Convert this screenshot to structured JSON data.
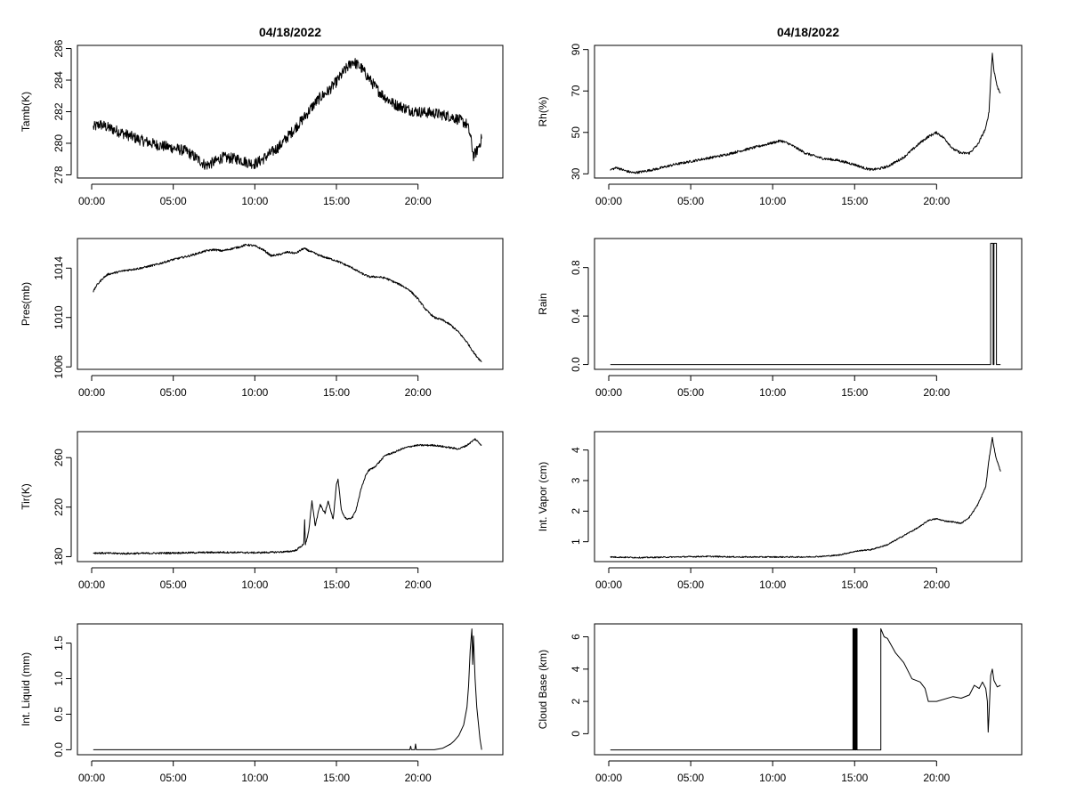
{
  "figure": {
    "date_title": "04/18/2022"
  },
  "chart_data": [
    {
      "id": "tamb",
      "type": "line",
      "title": "04/18/2022",
      "ylabel": "Tamb(K)",
      "xlim": [
        0,
        24
      ],
      "ylim": [
        277.8,
        286.2
      ],
      "x_ticks": [
        0,
        5,
        10,
        15,
        20
      ],
      "x_tick_labels": [
        "00:00",
        "05:00",
        "10:00",
        "15:00",
        "20:00"
      ],
      "y_ticks": [
        278,
        280,
        282,
        284,
        286
      ],
      "y_tick_labels": [
        "278",
        "280",
        "282",
        "284",
        "286"
      ],
      "series": [
        {
          "noise": 0.35,
          "x": [
            0.1,
            0.5,
            1,
            2,
            3,
            4,
            5,
            5.8,
            6.5,
            7,
            7.5,
            8,
            9,
            9.5,
            10,
            10.5,
            11,
            11.5,
            12,
            12.5,
            13,
            13.5,
            14,
            14.5,
            15,
            15.5,
            16,
            16.5,
            17,
            17.5,
            18,
            18.5,
            19,
            19.5,
            20,
            21,
            22,
            22.5,
            23,
            23.2,
            23.4,
            23.6,
            23.9
          ],
          "y": [
            281.0,
            281.2,
            281.0,
            280.6,
            280.2,
            279.9,
            279.7,
            279.5,
            279.0,
            278.6,
            278.8,
            279.1,
            279.0,
            278.8,
            278.7,
            279.0,
            279.4,
            279.8,
            280.4,
            281.0,
            281.6,
            282.3,
            282.9,
            283.3,
            283.9,
            284.6,
            285.2,
            284.8,
            284.1,
            283.4,
            282.9,
            282.5,
            282.3,
            282.1,
            282.0,
            281.9,
            281.7,
            281.5,
            281.2,
            280.5,
            279.2,
            279.5,
            280.3
          ]
        }
      ]
    },
    {
      "id": "rh",
      "type": "line",
      "title": "04/18/2022",
      "ylabel": "Rh(%)",
      "xlim": [
        0,
        24
      ],
      "ylim": [
        28,
        92
      ],
      "x_ticks": [
        0,
        5,
        10,
        15,
        20
      ],
      "x_tick_labels": [
        "00:00",
        "05:00",
        "10:00",
        "15:00",
        "20:00"
      ],
      "y_ticks": [
        30,
        50,
        70,
        90
      ],
      "y_tick_labels": [
        "30",
        "50",
        "70",
        "90"
      ],
      "series": [
        {
          "noise": 0.6,
          "x": [
            0.1,
            0.5,
            1,
            1.5,
            2,
            3,
            4,
            5,
            6,
            7,
            8,
            9,
            10,
            10.5,
            11,
            12,
            13,
            14,
            15,
            15.5,
            16,
            16.5,
            17,
            18,
            19,
            19.5,
            20,
            20.5,
            21,
            21.5,
            22,
            22.5,
            23,
            23.2,
            23.3,
            23.4,
            23.5,
            23.7,
            23.9
          ],
          "y": [
            32,
            33,
            31.5,
            30.5,
            31,
            32.5,
            34.5,
            36,
            37.5,
            39,
            41,
            43,
            45,
            46,
            44.5,
            40,
            37.5,
            36.5,
            34.5,
            33,
            32,
            32.5,
            33.5,
            38,
            45,
            48,
            50,
            47,
            42,
            40,
            40,
            44,
            52,
            60,
            75,
            88,
            80,
            72,
            69
          ]
        }
      ]
    },
    {
      "id": "pres",
      "type": "line",
      "ylabel": "Pres(mb)",
      "xlim": [
        0,
        24
      ],
      "ylim": [
        1005.8,
        1016.4
      ],
      "x_ticks": [
        0,
        5,
        10,
        15,
        20
      ],
      "x_tick_labels": [
        "00:00",
        "05:00",
        "10:00",
        "15:00",
        "20:00"
      ],
      "y_ticks": [
        1006,
        1010,
        1014
      ],
      "y_tick_labels": [
        "1006",
        "1010",
        "1014"
      ],
      "series": [
        {
          "noise": 0.08,
          "x": [
            0.1,
            0.3,
            0.7,
            1,
            2,
            3,
            4,
            5,
            6,
            7,
            7.5,
            8,
            9,
            9.5,
            10,
            10.5,
            11,
            11.5,
            12,
            12.5,
            13,
            13.5,
            14,
            14.5,
            15,
            15.5,
            16,
            16.5,
            17,
            17.5,
            18,
            18.5,
            19,
            19.5,
            20,
            20.5,
            21,
            21.5,
            22,
            22.5,
            23,
            23.5,
            23.9
          ],
          "y": [
            1012.1,
            1012.6,
            1013.2,
            1013.5,
            1013.8,
            1014.0,
            1014.3,
            1014.7,
            1015.0,
            1015.4,
            1015.5,
            1015.4,
            1015.7,
            1015.9,
            1015.8,
            1015.5,
            1015.0,
            1015.1,
            1015.3,
            1015.2,
            1015.6,
            1015.3,
            1015.0,
            1014.8,
            1014.6,
            1014.3,
            1014.0,
            1013.6,
            1013.3,
            1013.3,
            1013.2,
            1012.9,
            1012.6,
            1012.2,
            1011.5,
            1010.6,
            1010.0,
            1009.8,
            1009.4,
            1008.8,
            1008.0,
            1007.0,
            1006.4
          ]
        }
      ]
    },
    {
      "id": "rain",
      "type": "line",
      "ylabel": "Rain",
      "xlim": [
        0,
        24
      ],
      "ylim": [
        -0.04,
        1.04
      ],
      "x_ticks": [
        0,
        5,
        10,
        15,
        20
      ],
      "x_tick_labels": [
        "00:00",
        "05:00",
        "10:00",
        "15:00",
        "20:00"
      ],
      "y_ticks": [
        0,
        0.4,
        0.8
      ],
      "y_tick_labels": [
        "0.0",
        "0.4",
        "0.8"
      ],
      "series": [
        {
          "noise": 0,
          "x": [
            0.1,
            23.3,
            23.3,
            23.45,
            23.45,
            23.5,
            23.5,
            23.65,
            23.65,
            23.9
          ],
          "y": [
            0,
            0,
            1,
            1,
            0,
            0,
            1,
            1,
            0,
            0
          ]
        }
      ]
    },
    {
      "id": "tir",
      "type": "line",
      "ylabel": "Tir(K)",
      "xlim": [
        0,
        24
      ],
      "ylim": [
        176,
        281
      ],
      "x_ticks": [
        0,
        5,
        10,
        15,
        20
      ],
      "x_tick_labels": [
        "00:00",
        "05:00",
        "10:00",
        "15:00",
        "20:00"
      ],
      "y_ticks": [
        180,
        220,
        260
      ],
      "y_tick_labels": [
        "180",
        "220",
        "260"
      ],
      "series": [
        {
          "noise": 0.7,
          "x": [
            0.1,
            2,
            4,
            6,
            8,
            10,
            11,
            12,
            12.5,
            12.8,
            13,
            13.05,
            13.1,
            13.3,
            13.5,
            13.7,
            14,
            14.3,
            14.5,
            14.8,
            15,
            15.1,
            15.3,
            15.5,
            15.7,
            16,
            16.2,
            16.5,
            16.8,
            17,
            17.3,
            17.6,
            18,
            18.5,
            19,
            19.5,
            20,
            21,
            22,
            22.5,
            23,
            23.3,
            23.5,
            23.9
          ],
          "y": [
            183,
            182.5,
            182.8,
            183.2,
            183.5,
            183.2,
            183.5,
            184,
            185,
            188,
            190,
            210,
            190,
            200,
            225,
            205,
            222,
            215,
            225,
            210,
            238,
            242,
            218,
            212,
            210,
            212,
            218,
            234,
            246,
            250,
            252,
            256,
            262,
            264,
            267,
            269,
            270,
            270,
            268,
            267,
            270,
            273,
            275,
            270
          ]
        }
      ]
    },
    {
      "id": "vapor",
      "type": "line",
      "ylabel": "Int. Vapor (cm)",
      "xlim": [
        0,
        24
      ],
      "ylim": [
        0.35,
        4.6
      ],
      "x_ticks": [
        0,
        5,
        10,
        15,
        20
      ],
      "x_tick_labels": [
        "00:00",
        "05:00",
        "10:00",
        "15:00",
        "20:00"
      ],
      "y_ticks": [
        1,
        2,
        3,
        4
      ],
      "y_tick_labels": [
        "1",
        "2",
        "3",
        "4"
      ],
      "series": [
        {
          "noise": 0.02,
          "x": [
            0.1,
            2,
            4,
            6,
            8,
            10,
            12,
            13,
            14,
            15,
            15.5,
            16,
            17,
            18,
            19,
            19.5,
            20,
            20.5,
            21,
            21.5,
            22,
            22.5,
            23,
            23.2,
            23.4,
            23.6,
            23.9
          ],
          "y": [
            0.5,
            0.48,
            0.5,
            0.52,
            0.5,
            0.5,
            0.5,
            0.52,
            0.56,
            0.68,
            0.72,
            0.74,
            0.9,
            1.2,
            1.5,
            1.7,
            1.75,
            1.68,
            1.65,
            1.6,
            1.8,
            2.2,
            2.8,
            3.7,
            4.4,
            3.8,
            3.3
          ]
        }
      ]
    },
    {
      "id": "liquid",
      "type": "line",
      "ylabel": "Int. Liquid (mm)",
      "xlim": [
        0,
        24
      ],
      "ylim": [
        -0.07,
        1.77
      ],
      "x_ticks": [
        0,
        5,
        10,
        15,
        20
      ],
      "x_tick_labels": [
        "00:00",
        "05:00",
        "10:00",
        "15:00",
        "20:00"
      ],
      "y_ticks": [
        0,
        0.5,
        1.0,
        1.5
      ],
      "y_tick_labels": [
        "0.0",
        "0.5",
        "1.0",
        "1.5"
      ],
      "series": [
        {
          "noise": 0,
          "x": [
            0.1,
            19.5,
            19.55,
            19.6,
            19.8,
            19.85,
            19.9,
            20,
            21,
            21.5,
            22,
            22.2,
            22.5,
            22.8,
            23,
            23.1,
            23.2,
            23.3,
            23.35,
            23.4,
            23.5,
            23.6,
            23.8,
            23.9
          ],
          "y": [
            0,
            0,
            0.05,
            0,
            0,
            0.08,
            0,
            0,
            0,
            0.02,
            0.08,
            0.12,
            0.2,
            0.35,
            0.6,
            0.9,
            1.4,
            1.7,
            1.2,
            1.6,
            1.0,
            0.6,
            0.15,
            0
          ]
        }
      ]
    },
    {
      "id": "cloudbase",
      "type": "line",
      "ylabel": "Cloud Base (km)",
      "xlim": [
        0,
        24
      ],
      "ylim": [
        -1.3,
        6.8
      ],
      "x_ticks": [
        0,
        5,
        10,
        15,
        20
      ],
      "x_tick_labels": [
        "00:00",
        "05:00",
        "10:00",
        "15:00",
        "20:00"
      ],
      "y_ticks": [
        0,
        2,
        4,
        6
      ],
      "y_tick_labels": [
        "0",
        "2",
        "4",
        "6"
      ],
      "series": [
        {
          "noise": 0,
          "x": [
            0.1,
            14.9,
            14.9,
            14.95,
            14.95,
            15.0,
            15.0,
            15.05,
            15.05,
            15.1,
            15.1,
            15.15,
            15.15,
            15.2,
            15.2,
            16.6,
            16.6,
            16.8,
            17,
            17.5,
            18,
            18.5,
            19,
            19.3,
            19.5,
            20,
            21,
            21.5,
            22,
            22.3,
            22.6,
            22.8,
            23,
            23.1,
            23.15,
            23.2,
            23.3,
            23.4,
            23.5,
            23.7,
            23.9
          ],
          "y": [
            -1,
            -1,
            6.5,
            6.5,
            -1,
            -1,
            6.5,
            6.5,
            -1,
            -1,
            6.5,
            6.5,
            -1,
            -1,
            -1,
            -1,
            6.5,
            6.0,
            5.9,
            5.0,
            4.4,
            3.4,
            3.2,
            2.8,
            2.0,
            2.0,
            2.3,
            2.2,
            2.4,
            3.0,
            2.8,
            3.2,
            2.8,
            2.0,
            0.1,
            1.2,
            3.6,
            4.0,
            3.3,
            2.9,
            3.0
          ]
        }
      ]
    }
  ]
}
